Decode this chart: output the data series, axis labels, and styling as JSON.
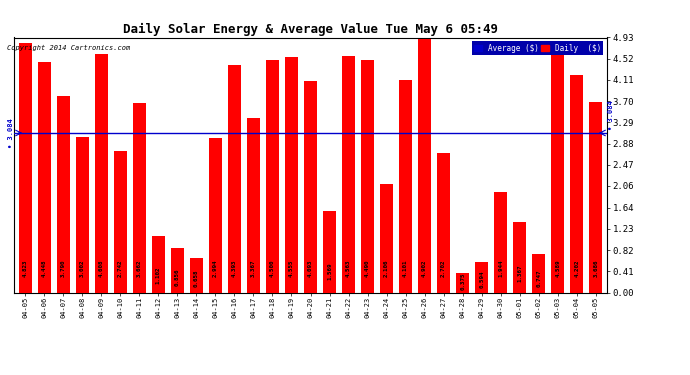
{
  "title": "Daily Solar Energy & Average Value Tue May 6 05:49",
  "copyright": "Copyright 2014 Cartronics.com",
  "average_value": 3.084,
  "categories": [
    "04-05",
    "04-06",
    "04-07",
    "04-08",
    "04-09",
    "04-10",
    "04-11",
    "04-12",
    "04-13",
    "04-14",
    "04-15",
    "04-16",
    "04-17",
    "04-18",
    "04-19",
    "04-20",
    "04-21",
    "04-22",
    "04-23",
    "04-24",
    "04-25",
    "04-26",
    "04-27",
    "04-28",
    "04-29",
    "04-30",
    "05-01",
    "05-02",
    "05-03",
    "05-04",
    "05-05"
  ],
  "values": [
    4.823,
    4.448,
    3.79,
    3.002,
    4.608,
    2.742,
    3.662,
    1.102,
    0.856,
    0.658,
    2.994,
    4.393,
    3.367,
    4.5,
    4.555,
    4.093,
    1.569,
    4.563,
    4.49,
    2.106,
    4.101,
    4.902,
    2.702,
    0.375,
    0.594,
    1.944,
    1.367,
    0.747,
    4.589,
    4.202,
    3.686
  ],
  "bar_color": "#ff0000",
  "avg_line_color": "#0000cc",
  "background_color": "#ffffff",
  "grid_color": "#aaaaaa",
  "ylim": [
    0.0,
    4.93
  ],
  "yticks": [
    0.0,
    0.41,
    0.82,
    1.23,
    1.64,
    2.06,
    2.47,
    2.88,
    3.29,
    3.7,
    4.11,
    4.52,
    4.93
  ],
  "legend_avg_color": "#0000cc",
  "legend_daily_color": "#ff0000",
  "avg_label": "Average ($)",
  "daily_label": "Daily  ($)"
}
